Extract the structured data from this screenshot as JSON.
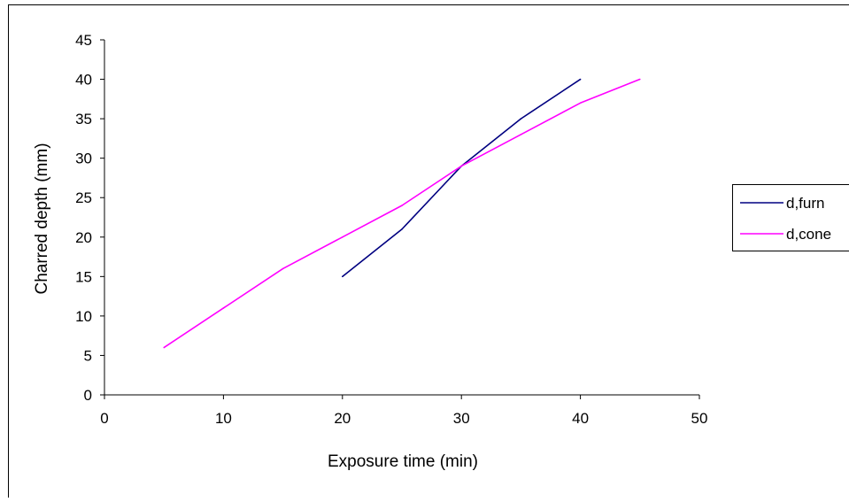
{
  "chart_data": {
    "type": "line",
    "title": "",
    "xlabel": "Exposure time (min)",
    "ylabel": "Charred depth (mm)",
    "xlim": [
      0,
      50
    ],
    "ylim": [
      0,
      45
    ],
    "x_ticks": [
      0,
      10,
      20,
      30,
      40,
      50
    ],
    "y_ticks": [
      0,
      5,
      10,
      15,
      20,
      25,
      30,
      35,
      40,
      45
    ],
    "grid": false,
    "legend_position": "right",
    "series": [
      {
        "name": "d,furn",
        "color": "#000080",
        "x": [
          20,
          25,
          30,
          35,
          40
        ],
        "y": [
          15,
          21,
          29,
          35,
          40
        ]
      },
      {
        "name": "d,cone",
        "color": "#ff00ff",
        "x": [
          5,
          10,
          15,
          20,
          25,
          30,
          35,
          40,
          45
        ],
        "y": [
          6,
          11,
          16,
          20,
          24,
          29,
          33,
          37,
          40
        ]
      }
    ]
  }
}
